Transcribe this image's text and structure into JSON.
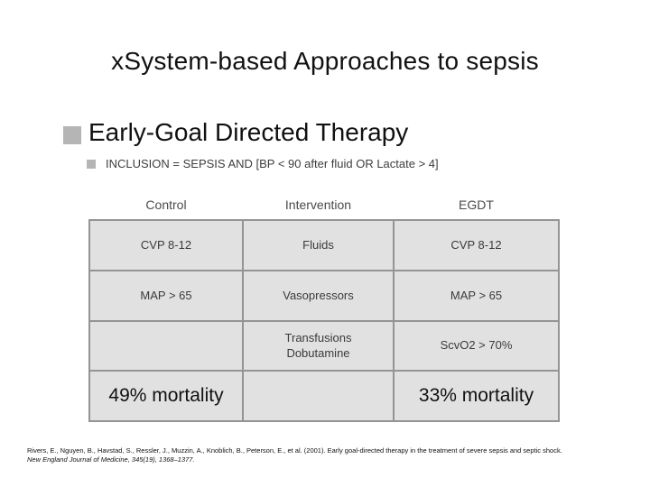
{
  "slide": {
    "title": "xSystem-based Approaches to sepsis",
    "bullet1": "Early-Goal Directed Therapy",
    "bullet2": "INCLUSION = SEPSIS AND [BP < 90 after fluid OR Lactate > 4]"
  },
  "table": {
    "column_headers": [
      "Control",
      "Intervention",
      "EGDT"
    ],
    "rows": [
      [
        "CVP 8-12",
        "Fluids",
        "CVP 8-12"
      ],
      [
        "MAP > 65",
        "Vasopressors",
        "MAP > 65"
      ],
      [
        "",
        "Transfusions\nDobutamine",
        "ScvO2 > 70%"
      ],
      [
        "49% mortality",
        "",
        "33% mortality"
      ]
    ]
  },
  "citation": {
    "line1": "Rivers, E., Nguyen, B., Havstad, S., Ressler, J., Muzzin, A., Knoblich, B., Peterson, E., et al. (2001). Early goal-directed therapy in the treatment of severe sepsis and septic shock.",
    "line2": "New England Journal of Medicine, 345(19), 1368–1377."
  },
  "colors": {
    "cell_fill": "#e1e1e1",
    "table_border": "#949494",
    "bullet_gray": "#b5b5b5",
    "background": "#ffffff"
  }
}
